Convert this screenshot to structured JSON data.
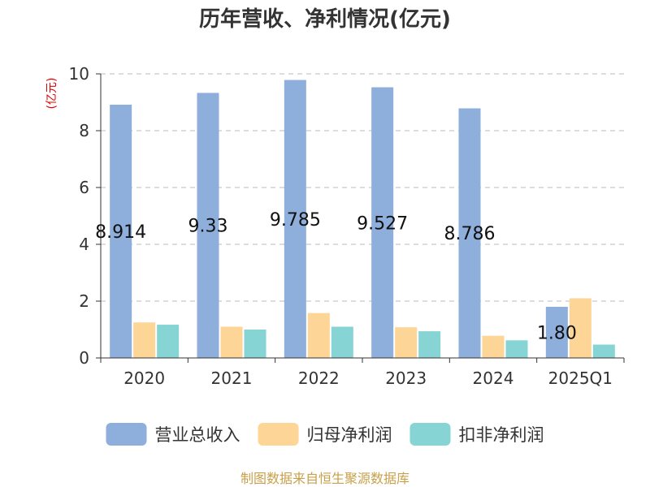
{
  "chart_data": {
    "type": "bar",
    "title": "历年营收、净利情况(亿元)",
    "ylabel": "(亿元)",
    "categories": [
      "2020",
      "2021",
      "2022",
      "2023",
      "2024",
      "2025Q1"
    ],
    "ylim": [
      0,
      10
    ],
    "yticks": [
      "0",
      "2",
      "4",
      "6",
      "8",
      "10"
    ],
    "grid": true,
    "legend_position": "bottom",
    "series": [
      {
        "name": "营业总收入",
        "color": "#8eaedb",
        "values": [
          8.914,
          9.33,
          9.785,
          9.527,
          8.786,
          1.8
        ]
      },
      {
        "name": "归母净利润",
        "color": "#fdd596",
        "values": [
          1.25,
          1.1,
          1.58,
          1.08,
          0.78,
          2.1
        ]
      },
      {
        "name": "扣非净利润",
        "color": "#86d4d4",
        "values": [
          1.17,
          1.0,
          1.1,
          0.94,
          0.62,
          0.47
        ]
      }
    ],
    "data_labels": [
      "8.914",
      "9.33",
      "9.785",
      "9.527",
      "8.786",
      "1.80"
    ]
  },
  "source": "制图数据来自恒生聚源数据库"
}
